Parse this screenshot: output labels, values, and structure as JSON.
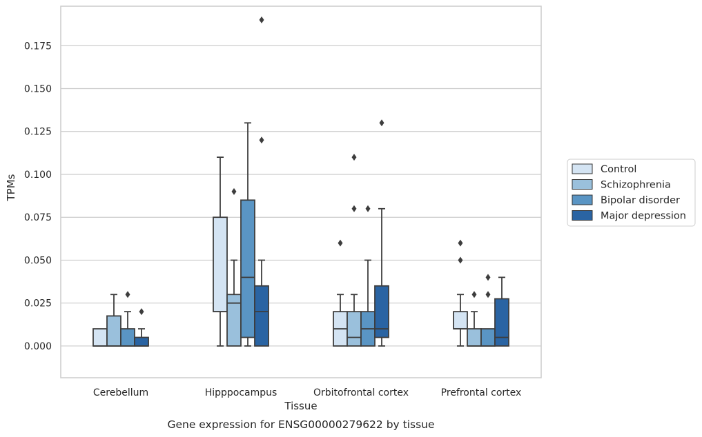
{
  "chart_data": {
    "type": "box",
    "xlabel": "Tissue",
    "ylabel": "TPMs",
    "caption": "Gene expression for ENSG00000279622 by tissue",
    "ylim": [
      -0.0185,
      0.198
    ],
    "yticks": [
      "0.000",
      "0.025",
      "0.050",
      "0.075",
      "0.100",
      "0.125",
      "0.150",
      "0.175"
    ],
    "grid": "horizontal",
    "legend_position": "right",
    "categories": [
      "Cerebellum",
      "Hipppocampus",
      "Orbitofrontal cortex",
      "Prefrontal cortex"
    ],
    "series": [
      {
        "name": "Control",
        "color": "#d4e4f3",
        "boxes": [
          {
            "whisker_low": 0.0,
            "q1": 0.0,
            "median": 0.0,
            "q3": 0.01,
            "whisker_high": 0.01,
            "outliers": []
          },
          {
            "whisker_low": 0.0,
            "q1": 0.02,
            "median": 0.02,
            "q3": 0.075,
            "whisker_high": 0.11,
            "outliers": []
          },
          {
            "whisker_low": 0.0,
            "q1": 0.0,
            "median": 0.01,
            "q3": 0.02,
            "whisker_high": 0.03,
            "outliers": [
              0.06
            ]
          },
          {
            "whisker_low": 0.0,
            "q1": 0.01,
            "median": 0.01,
            "q3": 0.02,
            "whisker_high": 0.03,
            "outliers": [
              0.05,
              0.06
            ]
          }
        ]
      },
      {
        "name": "Schizophrenia",
        "color": "#9ac0dc",
        "boxes": [
          {
            "whisker_low": 0.0,
            "q1": 0.0,
            "median": 0.0,
            "q3": 0.0175,
            "whisker_high": 0.03,
            "outliers": []
          },
          {
            "whisker_low": 0.0,
            "q1": 0.0,
            "median": 0.025,
            "q3": 0.03,
            "whisker_high": 0.05,
            "outliers": [
              0.09
            ]
          },
          {
            "whisker_low": 0.0,
            "q1": 0.0,
            "median": 0.005,
            "q3": 0.02,
            "whisker_high": 0.03,
            "outliers": [
              0.08,
              0.11
            ]
          },
          {
            "whisker_low": 0.0,
            "q1": 0.0,
            "median": 0.0,
            "q3": 0.01,
            "whisker_high": 0.02,
            "outliers": [
              0.03
            ]
          }
        ]
      },
      {
        "name": "Bipolar disorder",
        "color": "#5a95c4",
        "boxes": [
          {
            "whisker_low": 0.0,
            "q1": 0.0,
            "median": 0.0,
            "q3": 0.01,
            "whisker_high": 0.02,
            "outliers": [
              0.03
            ]
          },
          {
            "whisker_low": 0.0,
            "q1": 0.005,
            "median": 0.04,
            "q3": 0.085,
            "whisker_high": 0.13,
            "outliers": []
          },
          {
            "whisker_low": 0.0,
            "q1": 0.0,
            "median": 0.01,
            "q3": 0.02,
            "whisker_high": 0.05,
            "outliers": [
              0.08
            ]
          },
          {
            "whisker_low": 0.0,
            "q1": 0.0,
            "median": 0.0,
            "q3": 0.01,
            "whisker_high": 0.01,
            "outliers": [
              0.03,
              0.04
            ]
          }
        ]
      },
      {
        "name": "Major depression",
        "color": "#2a64a3",
        "boxes": [
          {
            "whisker_low": 0.0,
            "q1": 0.0,
            "median": 0.0,
            "q3": 0.005,
            "whisker_high": 0.01,
            "outliers": [
              0.02
            ]
          },
          {
            "whisker_low": 0.0,
            "q1": 0.0,
            "median": 0.02,
            "q3": 0.035,
            "whisker_high": 0.05,
            "outliers": [
              0.12,
              0.19
            ]
          },
          {
            "whisker_low": 0.0,
            "q1": 0.005,
            "median": 0.01,
            "q3": 0.035,
            "whisker_high": 0.08,
            "outliers": [
              0.13
            ]
          },
          {
            "whisker_low": 0.0,
            "q1": 0.0,
            "median": 0.005,
            "q3": 0.0275,
            "whisker_high": 0.04,
            "outliers": []
          }
        ]
      }
    ]
  }
}
